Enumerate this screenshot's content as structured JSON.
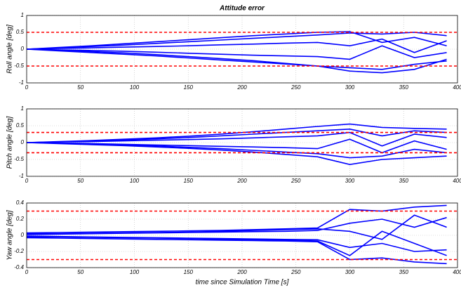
{
  "chart_data": [
    {
      "type": "line",
      "title": "Attitude error",
      "ylabel": "Roll angle [deg]",
      "x": [
        0,
        30,
        60,
        90,
        120,
        150,
        180,
        210,
        240,
        270,
        300,
        330,
        360,
        390
      ],
      "xlim": [
        0,
        400
      ],
      "xticks": [
        0,
        50,
        100,
        150,
        200,
        250,
        300,
        350,
        400
      ],
      "ylim": [
        -1,
        1
      ],
      "yticks": [
        -1,
        -0.5,
        0,
        0.5,
        1
      ],
      "grid": true,
      "thresholds": [
        0.5,
        -0.5
      ],
      "threshold_color": "#ff0000",
      "series": [
        {
          "color": "#0000ff",
          "values": [
            0,
            0.04,
            0.08,
            0.12,
            0.17,
            0.22,
            0.27,
            0.32,
            0.37,
            0.42,
            0.48,
            0.45,
            0.5,
            0.4
          ]
        },
        {
          "color": "#0000ff",
          "values": [
            0,
            -0.05,
            -0.1,
            -0.15,
            -0.2,
            -0.26,
            -0.32,
            -0.38,
            -0.44,
            -0.5,
            -0.55,
            -0.6,
            -0.45,
            -0.35
          ]
        },
        {
          "color": "#0000ff",
          "values": [
            0,
            0.02,
            0.04,
            0.06,
            0.08,
            0.1,
            0.13,
            0.15,
            0.18,
            0.2,
            0.1,
            0.3,
            -0.1,
            0.25
          ]
        },
        {
          "color": "#0000ff",
          "values": [
            0,
            -0.02,
            -0.04,
            -0.06,
            -0.09,
            -0.12,
            -0.15,
            -0.18,
            -0.2,
            -0.22,
            -0.3,
            0.1,
            -0.25,
            -0.1
          ]
        },
        {
          "color": "#0000ff",
          "values": [
            0,
            0.05,
            0.1,
            0.16,
            0.22,
            0.28,
            0.34,
            0.4,
            0.45,
            0.5,
            0.52,
            0.2,
            0.35,
            0.1
          ]
        },
        {
          "color": "#0000ff",
          "values": [
            0,
            -0.03,
            -0.07,
            -0.11,
            -0.16,
            -0.22,
            -0.28,
            -0.34,
            -0.42,
            -0.5,
            -0.65,
            -0.7,
            -0.6,
            -0.3
          ]
        }
      ]
    },
    {
      "type": "line",
      "ylabel": "Pitch angle [deg]",
      "x": [
        0,
        30,
        60,
        90,
        120,
        150,
        180,
        210,
        240,
        270,
        300,
        330,
        360,
        390
      ],
      "xlim": [
        0,
        400
      ],
      "xticks": [
        0,
        50,
        100,
        150,
        200,
        250,
        300,
        350,
        400
      ],
      "ylim": [
        -1,
        1
      ],
      "yticks": [
        -1,
        -0.5,
        0,
        0.5,
        1
      ],
      "grid": true,
      "thresholds": [
        0.3,
        -0.3
      ],
      "threshold_color": "#ff0000",
      "series": [
        {
          "color": "#0000ff",
          "values": [
            0,
            0.03,
            0.06,
            0.1,
            0.14,
            0.19,
            0.25,
            0.32,
            0.4,
            0.48,
            0.55,
            0.45,
            0.42,
            0.4
          ]
        },
        {
          "color": "#0000ff",
          "values": [
            0,
            -0.03,
            -0.06,
            -0.09,
            -0.13,
            -0.17,
            -0.22,
            -0.28,
            -0.35,
            -0.42,
            -0.65,
            -0.5,
            -0.45,
            -0.4
          ]
        },
        {
          "color": "#0000ff",
          "values": [
            0,
            0.02,
            0.03,
            0.05,
            0.07,
            0.09,
            0.11,
            0.14,
            0.17,
            0.2,
            0.3,
            -0.1,
            0.25,
            0.15
          ]
        },
        {
          "color": "#0000ff",
          "values": [
            0,
            -0.01,
            -0.03,
            -0.05,
            -0.07,
            -0.09,
            -0.11,
            -0.13,
            -0.15,
            -0.18,
            0.1,
            -0.3,
            0.05,
            -0.2
          ]
        },
        {
          "color": "#0000ff",
          "values": [
            0,
            0.02,
            0.05,
            0.08,
            0.11,
            0.15,
            0.2,
            0.25,
            0.3,
            0.35,
            0.4,
            0.2,
            0.35,
            0.3
          ]
        },
        {
          "color": "#0000ff",
          "values": [
            0,
            -0.02,
            -0.04,
            -0.07,
            -0.1,
            -0.14,
            -0.18,
            -0.23,
            -0.28,
            -0.33,
            -0.45,
            -0.4,
            -0.2,
            -0.3
          ]
        }
      ]
    },
    {
      "type": "line",
      "ylabel": "Yaw angle [deg]",
      "xlabel": "time since Simulation Time  [s]",
      "x": [
        0,
        30,
        60,
        90,
        120,
        150,
        180,
        210,
        240,
        270,
        300,
        330,
        360,
        390
      ],
      "xlim": [
        0,
        400
      ],
      "xticks": [
        0,
        50,
        100,
        150,
        200,
        250,
        300,
        350,
        400
      ],
      "ylim": [
        -0.4,
        0.4
      ],
      "yticks": [
        -0.4,
        -0.2,
        0,
        0.2,
        0.4
      ],
      "grid": true,
      "thresholds": [
        0.3,
        -0.3
      ],
      "threshold_color": "#ff0000",
      "series": [
        {
          "color": "#0000ff",
          "values": [
            0.03,
            0.035,
            0.04,
            0.045,
            0.05,
            0.055,
            0.06,
            0.07,
            0.08,
            0.09,
            0.32,
            0.3,
            0.35,
            0.37
          ]
        },
        {
          "color": "#0000ff",
          "values": [
            -0.03,
            -0.035,
            -0.04,
            -0.045,
            -0.05,
            -0.055,
            -0.06,
            -0.065,
            -0.07,
            -0.08,
            -0.3,
            -0.28,
            -0.33,
            -0.35
          ]
        },
        {
          "color": "#0000ff",
          "values": [
            0.01,
            0.015,
            0.02,
            0.025,
            0.03,
            0.035,
            0.04,
            0.045,
            0.05,
            0.06,
            0.15,
            0.2,
            0.1,
            0.22
          ]
        },
        {
          "color": "#0000ff",
          "values": [
            -0.01,
            -0.015,
            -0.02,
            -0.025,
            -0.03,
            -0.035,
            -0.04,
            -0.045,
            -0.05,
            -0.055,
            -0.15,
            -0.1,
            -0.2,
            -0.18
          ]
        },
        {
          "color": "#0000ff",
          "values": [
            0.02,
            0.02,
            0.025,
            0.03,
            0.035,
            0.04,
            0.05,
            0.06,
            0.07,
            0.08,
            0.05,
            -0.05,
            0.25,
            0.1
          ]
        },
        {
          "color": "#0000ff",
          "values": [
            -0.02,
            -0.02,
            -0.025,
            -0.03,
            -0.035,
            -0.04,
            -0.05,
            -0.055,
            -0.06,
            -0.07,
            -0.25,
            0.05,
            -0.1,
            -0.25
          ]
        }
      ]
    }
  ]
}
